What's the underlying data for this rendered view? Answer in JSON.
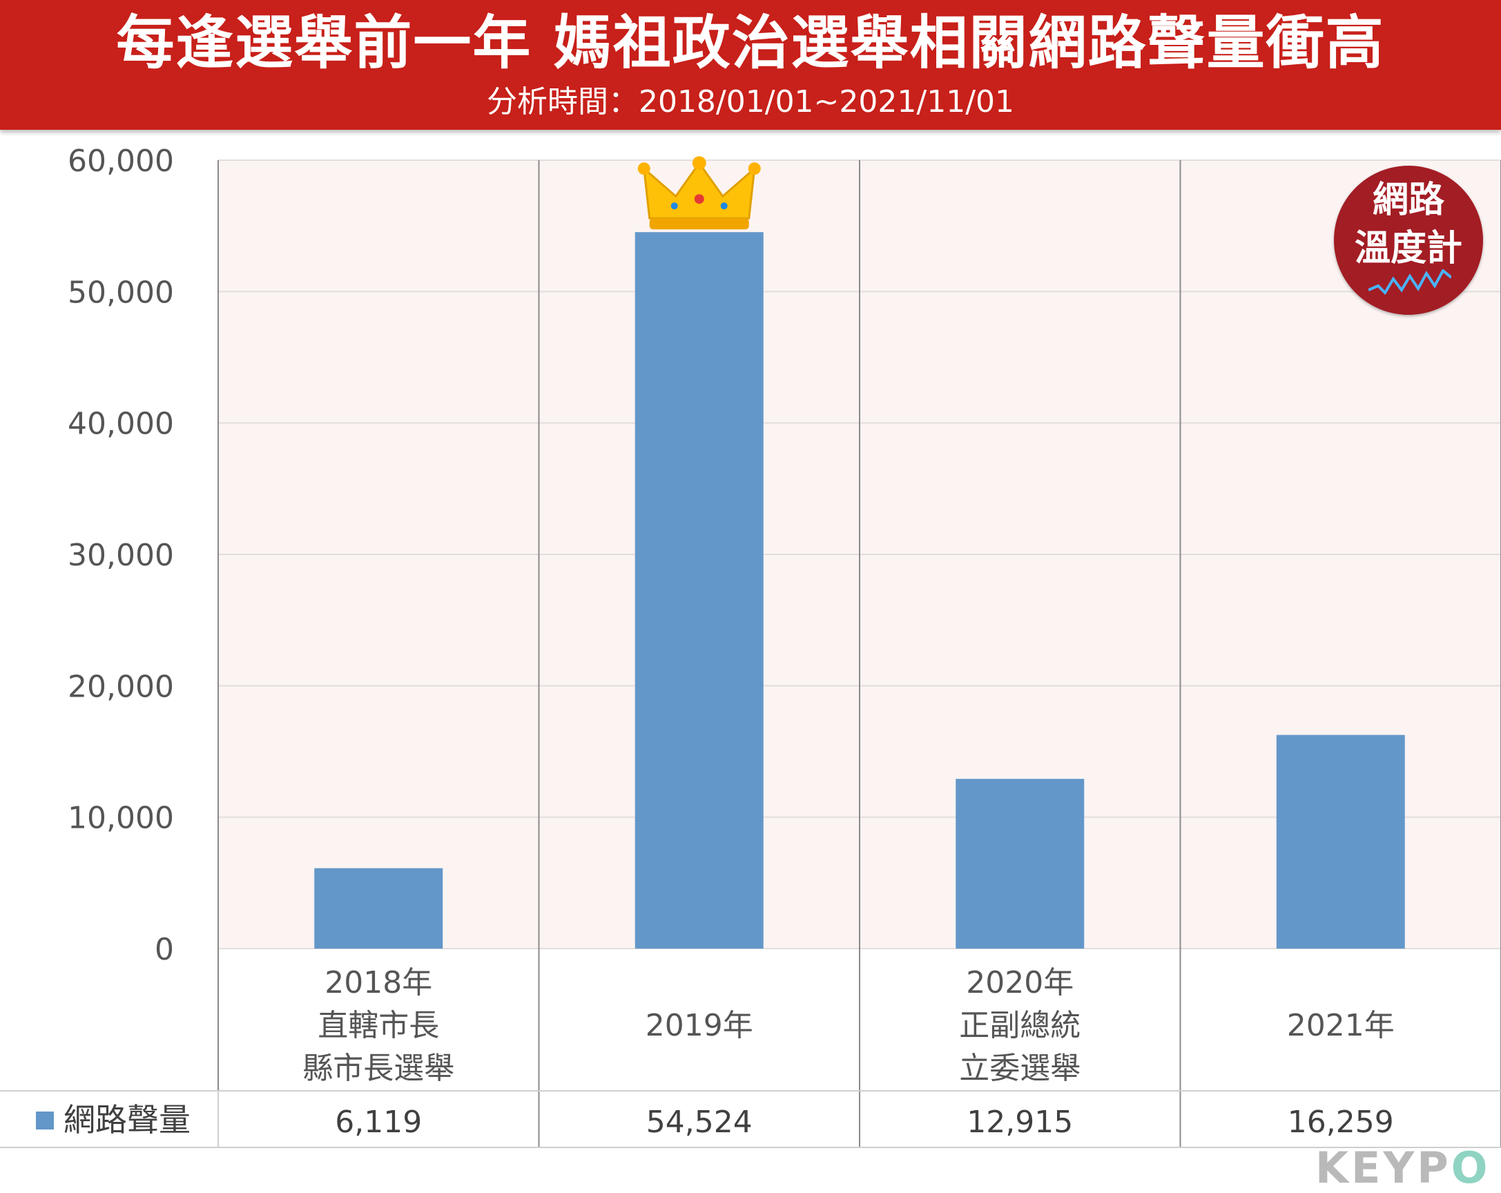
{
  "header": {
    "title": "每逢選舉前一年 媽祖政治選舉相關網路聲量衝高",
    "subtitle": "分析時間：2018/01/01~2021/11/01"
  },
  "badge": {
    "line1": "網路",
    "line2": "溫度計"
  },
  "brand": {
    "text": "KEYP",
    "accent_text": "O"
  },
  "colors": {
    "header": "#c8201a",
    "bar": "#6397c9",
    "plot_bg": "#fcf4f3",
    "badge": "#a31d24"
  },
  "icons": {
    "crown": "crown-icon",
    "legend": "legend-swatch-square"
  },
  "chart_data": {
    "type": "bar",
    "categories": [
      [
        "2018年",
        "直轄市長",
        "縣市長選舉"
      ],
      [
        "2019年"
      ],
      [
        "2020年",
        "正副總統",
        "立委選舉"
      ],
      [
        "2021年"
      ]
    ],
    "series": [
      {
        "name": "網路聲量",
        "values": [
          6119,
          54524,
          12915,
          16259
        ],
        "value_labels": [
          "6,119",
          "54,524",
          "12,915",
          "16,259"
        ]
      }
    ],
    "ylim": [
      0,
      60000
    ],
    "yticks": [
      0,
      10000,
      20000,
      30000,
      40000,
      50000,
      60000
    ],
    "ytick_labels": [
      "0",
      "10,000",
      "20,000",
      "30,000",
      "40,000",
      "50,000",
      "60,000"
    ],
    "grid": true,
    "legend": "data-table-bottom",
    "highlight": {
      "category_index": 1,
      "icon": "crown-icon"
    }
  }
}
